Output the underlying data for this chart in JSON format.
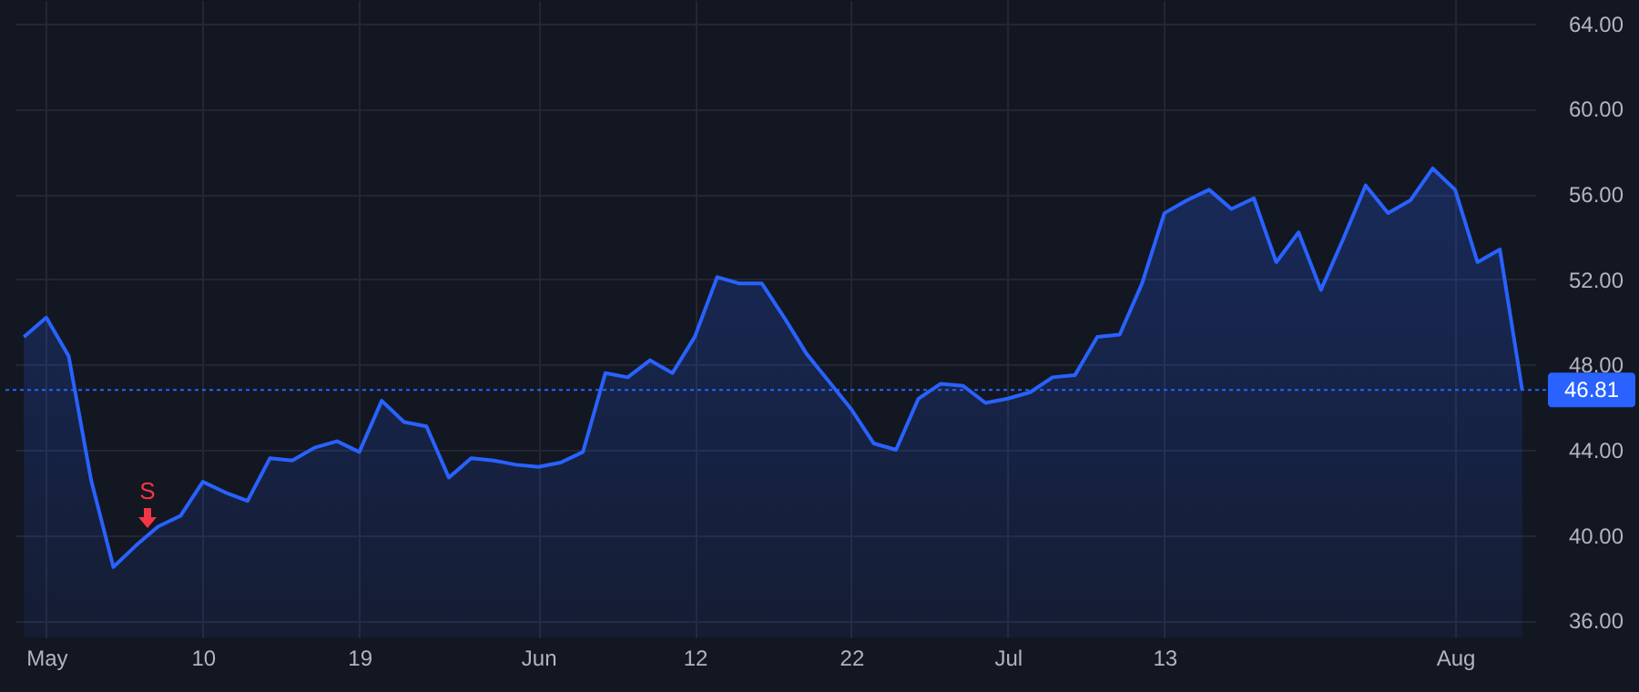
{
  "chart_data": {
    "type": "area",
    "categories": [
      null,
      "May",
      null,
      null,
      null,
      null,
      null,
      null,
      "10",
      null,
      null,
      null,
      null,
      null,
      null,
      "19",
      null,
      null,
      null,
      null,
      null,
      null,
      null,
      "Jun",
      null,
      null,
      null,
      null,
      null,
      null,
      "12",
      null,
      null,
      null,
      null,
      null,
      null,
      "22",
      null,
      null,
      null,
      null,
      null,
      null,
      "Jul",
      null,
      null,
      null,
      null,
      null,
      null,
      "13",
      null,
      null,
      null,
      null,
      null,
      null,
      null,
      null,
      null,
      null,
      null,
      null,
      "Aug",
      null,
      null,
      null
    ],
    "series": [
      {
        "color": "#2962ff",
        "values": [
          49.3,
          50.2,
          48.4,
          42.6,
          38.5,
          39.5,
          40.4,
          40.9,
          42.5,
          42.0,
          41.6,
          43.6,
          43.5,
          44.1,
          44.4,
          43.9,
          46.3,
          45.3,
          45.1,
          42.7,
          43.6,
          43.5,
          43.3,
          43.2,
          43.4,
          43.9,
          47.6,
          47.4,
          48.2,
          47.6,
          49.3,
          52.1,
          51.8,
          51.8,
          50.2,
          48.5,
          47.2,
          45.9,
          44.3,
          44.0,
          46.4,
          47.1,
          47.0,
          46.2,
          46.4,
          46.7,
          47.4,
          47.5,
          49.3,
          49.4,
          51.8,
          55.1,
          55.7,
          56.2,
          55.3,
          55.8,
          52.8,
          54.2,
          51.5,
          53.9,
          56.4,
          55.1,
          55.7,
          57.2,
          56.2,
          52.8,
          53.4,
          46.81
        ]
      }
    ],
    "ylim": [
      35.2,
      65.1
    ],
    "yticks": [
      {
        "value": 36,
        "label": "36.00"
      },
      {
        "value": 40,
        "label": "40.00"
      },
      {
        "value": 44,
        "label": "44.00"
      },
      {
        "value": 48,
        "label": "48.00"
      },
      {
        "value": 52,
        "label": "52.00"
      },
      {
        "value": 56,
        "label": "56.00"
      },
      {
        "value": 60,
        "label": "60.00"
      },
      {
        "value": 64,
        "label": "64.00"
      }
    ],
    "grid": true,
    "ref_lines": [
      {
        "axis": "y",
        "value": 46.81,
        "label": "46.81",
        "color": "#2962ff",
        "line_style": "dotted"
      }
    ],
    "annotations": [
      "S"
    ]
  }
}
